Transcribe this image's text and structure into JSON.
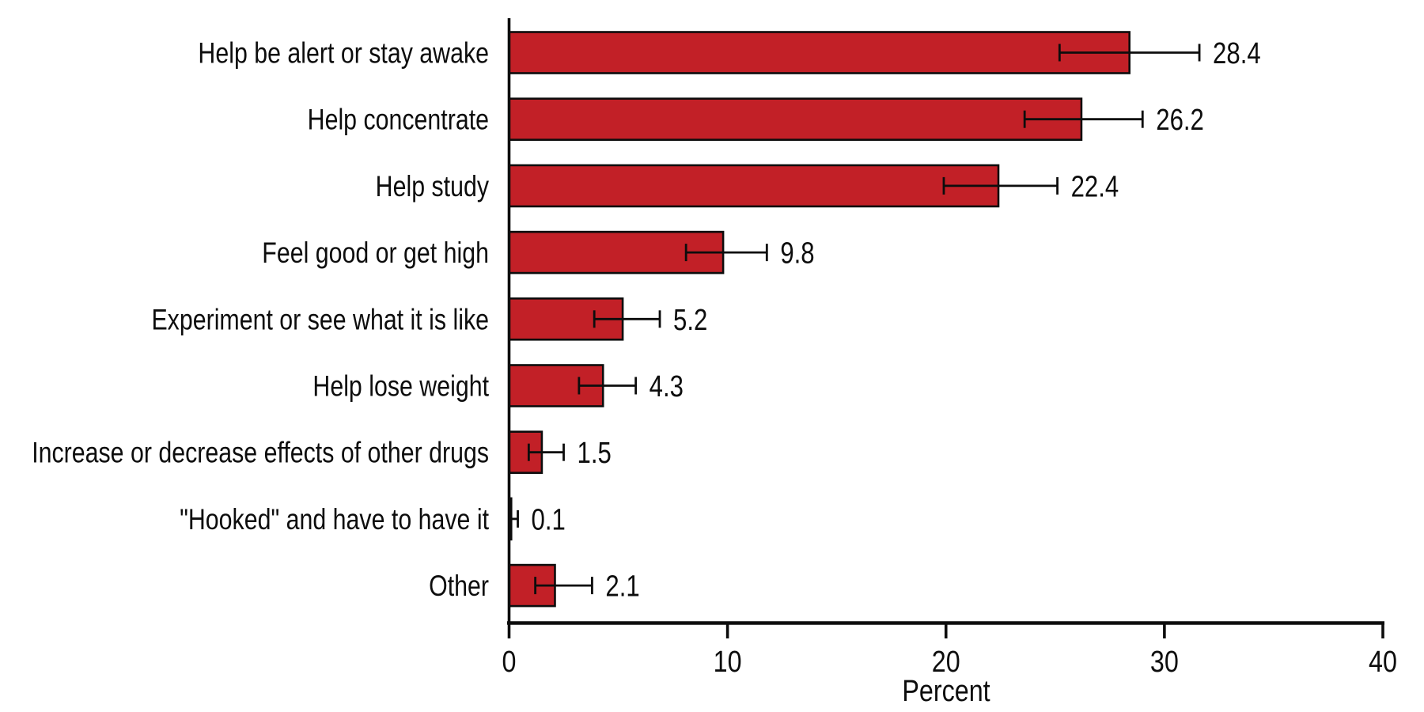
{
  "chart_data": {
    "type": "bar",
    "orientation": "horizontal",
    "title": "",
    "xlabel": "Percent",
    "ylabel": "",
    "xlim": [
      0,
      40
    ],
    "xticks": [
      0,
      10,
      20,
      30,
      40
    ],
    "xtick_labels": [
      "0",
      "10",
      "20",
      "30",
      "40"
    ],
    "grid": false,
    "legend": "none",
    "bar_color": "#C22027",
    "bar_border_color": "#0d0d0d",
    "axis_color": "#0d0d0d",
    "error_bar_color": "#0d0d0d",
    "categories": [
      "Help be alert or stay awake",
      "Help concentrate",
      "Help study",
      "Feel good or get high",
      "Experiment or see what it is like",
      "Help lose weight",
      "Increase or decrease effects of other drugs",
      "\"Hooked\" and have to have it",
      "Other"
    ],
    "values": [
      28.4,
      26.2,
      22.4,
      9.8,
      5.2,
      4.3,
      1.5,
      0.1,
      2.1
    ],
    "value_labels": [
      "28.4",
      "26.2",
      "22.4",
      "9.8",
      "5.2",
      "4.3",
      "1.5",
      "0.1",
      "2.1"
    ],
    "error_low": [
      25.2,
      23.6,
      19.9,
      8.1,
      3.9,
      3.2,
      0.9,
      0.0,
      1.2
    ],
    "error_high": [
      31.6,
      29.0,
      25.1,
      11.8,
      6.9,
      5.8,
      2.5,
      0.4,
      3.8
    ]
  }
}
